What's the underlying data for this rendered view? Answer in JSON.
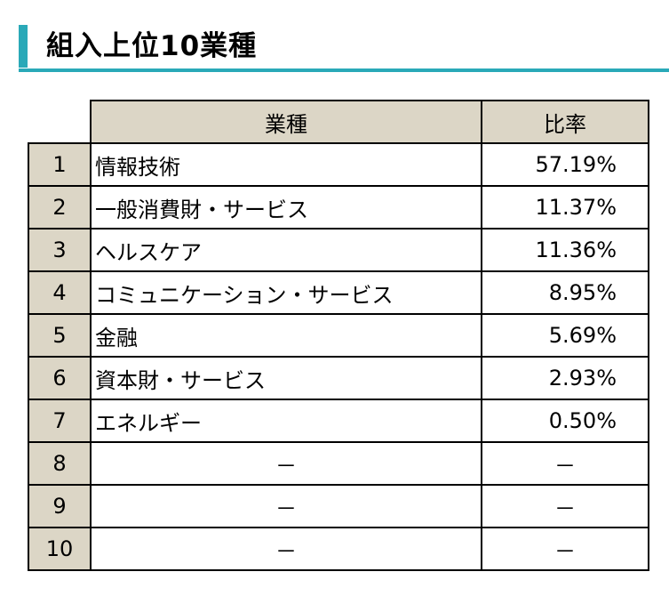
{
  "title": "組入上位10業種",
  "table": {
    "headers": {
      "sector": "業種",
      "ratio": "比率"
    },
    "rows": [
      {
        "rank": "1",
        "sector": "情報技術",
        "ratio": "57.19%"
      },
      {
        "rank": "2",
        "sector": "一般消費財・サービス",
        "ratio": "11.37%"
      },
      {
        "rank": "3",
        "sector": "ヘルスケア",
        "ratio": "11.36%"
      },
      {
        "rank": "4",
        "sector": "コミュニケーション・サービス",
        "ratio": "8.95%"
      },
      {
        "rank": "5",
        "sector": "金融",
        "ratio": "5.69%"
      },
      {
        "rank": "6",
        "sector": "資本財・サービス",
        "ratio": "2.93%"
      },
      {
        "rank": "7",
        "sector": "エネルギー",
        "ratio": "0.50%"
      },
      {
        "rank": "8",
        "sector": "－",
        "ratio": "－"
      },
      {
        "rank": "9",
        "sector": "－",
        "ratio": "－"
      },
      {
        "rank": "10",
        "sector": "－",
        "ratio": "－"
      }
    ]
  },
  "colors": {
    "accent": "#2aa9b8",
    "header_bg": "#dcd6c6"
  }
}
